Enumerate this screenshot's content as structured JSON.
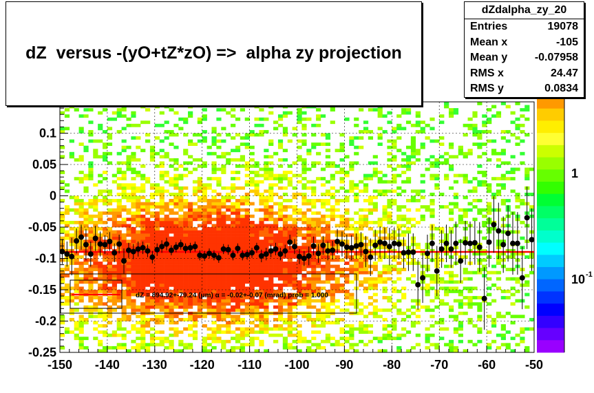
{
  "title": "dZ  versus -(yO+tZ*zO) =>  alpha zy projection",
  "stats": {
    "name": "dZdalpha_zy_20",
    "rows": [
      {
        "label": "Entries",
        "value": "19078"
      },
      {
        "label": "Mean x",
        "value": "-105"
      },
      {
        "label": "Mean y",
        "value": "-0.07958"
      },
      {
        "label": "RMS x",
        "value": "24.47"
      },
      {
        "label": "RMS y",
        "value": "0.0834"
      }
    ]
  },
  "chart_data": {
    "type": "scatter",
    "title": "dZ  versus -(yO+tZ*zO) =>  alpha zy projection",
    "xlim": [
      -150,
      -50
    ],
    "ylim": [
      -0.25,
      0.15
    ],
    "xticks": [
      -150,
      -140,
      -130,
      -120,
      -110,
      -100,
      -90,
      -80,
      -70,
      -60,
      -50
    ],
    "yticks": [
      "-0.25",
      "-0.2",
      "-0.15",
      "-0.1",
      "-0.05",
      "0",
      "0.05",
      "0.1"
    ],
    "ytick_values": [
      -0.25,
      -0.2,
      -0.15,
      -0.1,
      -0.05,
      0,
      0.05,
      0.1
    ],
    "grid": true,
    "colorbar": {
      "labels": [
        "1",
        "10",
        "-1"
      ],
      "scale": "log"
    },
    "colors": {
      "fit_line": "#ff0000",
      "points": "#000000"
    },
    "fit": {
      "label": "dZ = 894.92+-79.24 (μm) α = -0.02+-0.07 (mrad) prob = 1.000",
      "y": -0.0895
    },
    "profile": [
      {
        "x": -149.5,
        "y": -0.089,
        "e": 0.02
      },
      {
        "x": -148.5,
        "y": -0.093,
        "e": 0.02
      },
      {
        "x": -147.5,
        "y": -0.097,
        "e": 0.03
      },
      {
        "x": -146.5,
        "y": -0.072,
        "e": 0.02
      },
      {
        "x": -145.5,
        "y": -0.066,
        "e": 0.02
      },
      {
        "x": -144.5,
        "y": -0.078,
        "e": 0.025
      },
      {
        "x": -143.5,
        "y": -0.093,
        "e": 0.02
      },
      {
        "x": -142.5,
        "y": -0.068,
        "e": 0.02
      },
      {
        "x": -141.5,
        "y": -0.077,
        "e": 0.02
      },
      {
        "x": -140.5,
        "y": -0.078,
        "e": 0.015
      },
      {
        "x": -139.5,
        "y": -0.073,
        "e": 0.015
      },
      {
        "x": -138.5,
        "y": -0.091,
        "e": 0.015
      },
      {
        "x": -137.5,
        "y": -0.077,
        "e": 0.015
      },
      {
        "x": -136.5,
        "y": -0.104,
        "e": 0.02
      },
      {
        "x": -135.5,
        "y": -0.087,
        "e": 0.012
      },
      {
        "x": -134.5,
        "y": -0.089,
        "e": 0.012
      },
      {
        "x": -133.5,
        "y": -0.085,
        "e": 0.012
      },
      {
        "x": -132.5,
        "y": -0.083,
        "e": 0.01
      },
      {
        "x": -131.5,
        "y": -0.088,
        "e": 0.01
      },
      {
        "x": -130.5,
        "y": -0.098,
        "e": 0.01
      },
      {
        "x": -129.5,
        "y": -0.086,
        "e": 0.01
      },
      {
        "x": -128.5,
        "y": -0.081,
        "e": 0.01
      },
      {
        "x": -127.5,
        "y": -0.077,
        "e": 0.01
      },
      {
        "x": -126.5,
        "y": -0.087,
        "e": 0.008
      },
      {
        "x": -125.5,
        "y": -0.082,
        "e": 0.008
      },
      {
        "x": -124.5,
        "y": -0.078,
        "e": 0.008
      },
      {
        "x": -123.5,
        "y": -0.084,
        "e": 0.008
      },
      {
        "x": -122.5,
        "y": -0.083,
        "e": 0.008
      },
      {
        "x": -121.5,
        "y": -0.081,
        "e": 0.008
      },
      {
        "x": -120.5,
        "y": -0.095,
        "e": 0.008
      },
      {
        "x": -119.5,
        "y": -0.096,
        "e": 0.008
      },
      {
        "x": -118.5,
        "y": -0.092,
        "e": 0.008
      },
      {
        "x": -117.5,
        "y": -0.095,
        "e": 0.008
      },
      {
        "x": -116.5,
        "y": -0.099,
        "e": 0.008
      },
      {
        "x": -115.5,
        "y": -0.085,
        "e": 0.008
      },
      {
        "x": -114.5,
        "y": -0.086,
        "e": 0.008
      },
      {
        "x": -113.5,
        "y": -0.095,
        "e": 0.008
      },
      {
        "x": -112.5,
        "y": -0.084,
        "e": 0.008
      },
      {
        "x": -111.5,
        "y": -0.095,
        "e": 0.008
      },
      {
        "x": -110.5,
        "y": -0.094,
        "e": 0.008
      },
      {
        "x": -109.5,
        "y": -0.091,
        "e": 0.008
      },
      {
        "x": -108.5,
        "y": -0.083,
        "e": 0.008
      },
      {
        "x": -107.5,
        "y": -0.096,
        "e": 0.01
      },
      {
        "x": -106.5,
        "y": -0.093,
        "e": 0.01
      },
      {
        "x": -105.5,
        "y": -0.088,
        "e": 0.01
      },
      {
        "x": -104.5,
        "y": -0.085,
        "e": 0.01
      },
      {
        "x": -103.5,
        "y": -0.093,
        "e": 0.01
      },
      {
        "x": -102.5,
        "y": -0.088,
        "e": 0.01
      },
      {
        "x": -101.5,
        "y": -0.074,
        "e": 0.012
      },
      {
        "x": -100.5,
        "y": -0.081,
        "e": 0.012
      },
      {
        "x": -99.5,
        "y": -0.097,
        "e": 0.012
      },
      {
        "x": -98.5,
        "y": -0.1,
        "e": 0.012
      },
      {
        "x": -97.5,
        "y": -0.096,
        "e": 0.015
      },
      {
        "x": -96.5,
        "y": -0.08,
        "e": 0.015
      },
      {
        "x": -95.5,
        "y": -0.092,
        "e": 0.015
      },
      {
        "x": -94.5,
        "y": -0.079,
        "e": 0.015
      },
      {
        "x": -93.5,
        "y": -0.088,
        "e": 0.015
      },
      {
        "x": -92.5,
        "y": -0.087,
        "e": 0.015
      },
      {
        "x": -91.5,
        "y": -0.073,
        "e": 0.02
      },
      {
        "x": -90.5,
        "y": -0.077,
        "e": 0.02
      },
      {
        "x": -89.5,
        "y": -0.082,
        "e": 0.02
      },
      {
        "x": -88.5,
        "y": -0.083,
        "e": 0.02
      },
      {
        "x": -87.5,
        "y": -0.08,
        "e": 0.02
      },
      {
        "x": -86.5,
        "y": -0.078,
        "e": 0.02
      },
      {
        "x": -85.5,
        "y": -0.089,
        "e": 0.025
      },
      {
        "x": -84.5,
        "y": -0.098,
        "e": 0.03
      },
      {
        "x": -83.5,
        "y": -0.079,
        "e": 0.025
      },
      {
        "x": -82.5,
        "y": -0.074,
        "e": 0.025
      },
      {
        "x": -81.5,
        "y": -0.076,
        "e": 0.025
      },
      {
        "x": -80.5,
        "y": -0.081,
        "e": 0.03
      },
      {
        "x": -79.5,
        "y": -0.076,
        "e": 0.025
      },
      {
        "x": -78.5,
        "y": -0.077,
        "e": 0.025
      },
      {
        "x": -77.5,
        "y": -0.091,
        "e": 0.025
      },
      {
        "x": -76.5,
        "y": -0.09,
        "e": 0.03
      },
      {
        "x": -75.5,
        "y": -0.09,
        "e": 0.03
      },
      {
        "x": -74.5,
        "y": -0.142,
        "e": 0.04
      },
      {
        "x": -73.5,
        "y": -0.131,
        "e": 0.04
      },
      {
        "x": -72.5,
        "y": -0.092,
        "e": 0.03
      },
      {
        "x": -71.5,
        "y": -0.076,
        "e": 0.03
      },
      {
        "x": -70.5,
        "y": -0.12,
        "e": 0.04
      },
      {
        "x": -69.5,
        "y": -0.085,
        "e": 0.03
      },
      {
        "x": -68.5,
        "y": -0.076,
        "e": 0.03
      },
      {
        "x": -67.5,
        "y": -0.085,
        "e": 0.03
      },
      {
        "x": -66.5,
        "y": -0.076,
        "e": 0.035
      },
      {
        "x": -65.5,
        "y": -0.104,
        "e": 0.035
      },
      {
        "x": -64.5,
        "y": -0.075,
        "e": 0.035
      },
      {
        "x": -63.5,
        "y": -0.076,
        "e": 0.035
      },
      {
        "x": -62.5,
        "y": -0.075,
        "e": 0.035
      },
      {
        "x": -61.5,
        "y": -0.082,
        "e": 0.04
      },
      {
        "x": -60.5,
        "y": -0.164,
        "e": 0.05
      },
      {
        "x": -59.5,
        "y": -0.074,
        "e": 0.04
      },
      {
        "x": -58.5,
        "y": -0.046,
        "e": 0.045
      },
      {
        "x": -57.5,
        "y": -0.056,
        "e": 0.045
      },
      {
        "x": -56.5,
        "y": -0.078,
        "e": 0.045
      },
      {
        "x": -55.5,
        "y": -0.06,
        "e": 0.045
      },
      {
        "x": -54.5,
        "y": -0.076,
        "e": 0.05
      },
      {
        "x": -53.5,
        "y": -0.076,
        "e": 0.05
      },
      {
        "x": -52.5,
        "y": -0.131,
        "e": 0.05
      },
      {
        "x": -51.5,
        "y": -0.035,
        "e": 0.05
      },
      {
        "x": -50.5,
        "y": -0.07,
        "e": 0.05
      }
    ]
  }
}
